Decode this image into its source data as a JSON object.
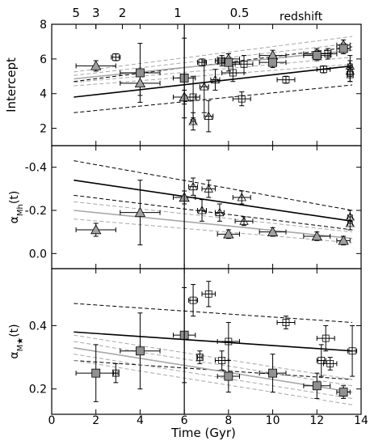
{
  "figure": {
    "redshift_label": "redshift",
    "x_axis": {
      "label": "Time (Gyr)",
      "range": [
        0,
        14
      ],
      "ticks": [
        0,
        2,
        4,
        6,
        8,
        10,
        12,
        14
      ]
    },
    "redshift_ticks": [
      {
        "label": "5",
        "time": 1.1
      },
      {
        "label": "3",
        "time": 2.0
      },
      {
        "label": "2",
        "time": 3.2
      },
      {
        "label": "1",
        "time": 5.7
      },
      {
        "label": "0.5",
        "time": 8.5
      }
    ],
    "vertical_marker_time": 6.0,
    "colors": {
      "axes": "#000000",
      "grey_marker": "#a0a0a0",
      "grey_square": "#909090",
      "grey_line": "#a8a8a8",
      "fit_line": "#000000"
    }
  },
  "chart_data": [
    {
      "type": "scatter",
      "ylabel": "Intercept",
      "ylim": [
        1,
        8
      ],
      "yticks": [
        2,
        4,
        6,
        8
      ],
      "ytick_labels": [
        "2",
        "4",
        "6",
        "8"
      ],
      "series": [
        {
          "marker": "triangle-grey",
          "points": [
            {
              "x": 2.0,
              "y": 5.6,
              "xerr": 0.9,
              "yerr": 0.3
            },
            {
              "x": 4.0,
              "y": 4.6,
              "xerr": 0.9,
              "yerr": 0.7
            },
            {
              "x": 6.0,
              "y": 3.8,
              "xerr": 0.5,
              "yerr": 0.4
            },
            {
              "x": 8.0,
              "y": 6.0,
              "xerr": 0.5,
              "yerr": 0.3
            },
            {
              "x": 10.0,
              "y": 6.2,
              "xerr": 0.6,
              "yerr": 0.3
            },
            {
              "x": 12.0,
              "y": 6.3,
              "xerr": 0.6,
              "yerr": 0.3
            },
            {
              "x": 13.2,
              "y": 6.8,
              "xerr": 0.3,
              "yerr": 0.3
            }
          ]
        },
        {
          "marker": "square-grey",
          "points": [
            {
              "x": 4.0,
              "y": 5.2,
              "xerr": 0.9,
              "yerr": 1.7
            },
            {
              "x": 6.0,
              "y": 4.9,
              "xerr": 0.5,
              "yerr": 2.3
            },
            {
              "x": 8.0,
              "y": 5.8,
              "xerr": 0.5,
              "yerr": 0.5
            },
            {
              "x": 10.0,
              "y": 5.8,
              "xerr": 0.6,
              "yerr": 0.3
            },
            {
              "x": 12.0,
              "y": 6.2,
              "xerr": 0.6,
              "yerr": 0.3
            },
            {
              "x": 13.2,
              "y": 6.6,
              "xerr": 0.3,
              "yerr": 0.3
            }
          ]
        },
        {
          "marker": "triangle-open",
          "points": [
            {
              "x": 6.4,
              "y": 2.4,
              "xerr": 0.1,
              "yerr": 0.5
            },
            {
              "x": 6.9,
              "y": 4.4,
              "xerr": 0.2,
              "yerr": 1.5
            },
            {
              "x": 7.1,
              "y": 2.7,
              "xerr": 0.2,
              "yerr": 0.9
            },
            {
              "x": 7.4,
              "y": 4.8,
              "xerr": 0.2,
              "yerr": 0.6
            },
            {
              "x": 13.5,
              "y": 5.6,
              "xerr": 0.1,
              "yerr": 0.6
            },
            {
              "x": 13.5,
              "y": 5.3,
              "xerr": 0.1,
              "yerr": 0.6
            }
          ]
        },
        {
          "marker": "square-open",
          "points": [
            {
              "x": 2.9,
              "y": 6.1,
              "xerr": 0.2,
              "yerr": 0.2
            },
            {
              "x": 6.4,
              "y": 3.8,
              "xerr": 0.3,
              "yerr": 1.2
            },
            {
              "x": 6.8,
              "y": 5.8,
              "xerr": 0.2,
              "yerr": 0.2
            },
            {
              "x": 7.7,
              "y": 5.9,
              "xerr": 0.3,
              "yerr": 0.3
            },
            {
              "x": 8.2,
              "y": 5.2,
              "xerr": 0.5,
              "yerr": 0.5
            },
            {
              "x": 8.6,
              "y": 3.7,
              "xerr": 0.4,
              "yerr": 0.4
            },
            {
              "x": 8.7,
              "y": 5.7,
              "xerr": 0.4,
              "yerr": 0.5
            },
            {
              "x": 10.6,
              "y": 4.8,
              "xerr": 0.4,
              "yerr": 0.2
            },
            {
              "x": 12.3,
              "y": 5.4,
              "xerr": 0.3,
              "yerr": 0.2
            },
            {
              "x": 12.5,
              "y": 6.3,
              "xerr": 0.4,
              "yerr": 0.3
            },
            {
              "x": 13.5,
              "y": 5.1,
              "xerr": 0.1,
              "yerr": 0.4
            }
          ]
        }
      ],
      "lines": [
        {
          "style": "solid-black",
          "from": [
            1,
            3.8
          ],
          "to": [
            13.6,
            5.6
          ]
        },
        {
          "style": "dashed-black",
          "from": [
            1,
            4.7
          ],
          "to": [
            13.6,
            6.7
          ]
        },
        {
          "style": "dashed-black",
          "from": [
            1,
            2.9
          ],
          "to": [
            13.6,
            4.5
          ]
        },
        {
          "style": "solid-grey",
          "from": [
            1,
            4.85
          ],
          "to": [
            13.6,
            6.5
          ]
        },
        {
          "style": "dashed-grey",
          "from": [
            1,
            5.25
          ],
          "to": [
            13.6,
            7.3
          ]
        },
        {
          "style": "dashed-grey",
          "from": [
            1,
            5.05
          ],
          "to": [
            13.6,
            6.9
          ]
        },
        {
          "style": "dashed-grey",
          "from": [
            1,
            4.65
          ],
          "to": [
            13.6,
            6.1
          ]
        },
        {
          "style": "dashed-grey",
          "from": [
            1,
            4.45
          ],
          "to": [
            13.6,
            5.7
          ]
        }
      ]
    },
    {
      "type": "scatter",
      "ylabel": "α_Mh(t)",
      "ylabel_main": "α",
      "ylabel_sub": "Mh",
      "ylabel_suffix": "(t)",
      "ylim": [
        0.07,
        -0.5
      ],
      "yticks": [
        -0.4,
        -0.2,
        0.0
      ],
      "ytick_labels": [
        "-0.4",
        "-0.2",
        "0.0"
      ],
      "series": [
        {
          "marker": "triangle-grey",
          "points": [
            {
              "x": 2.0,
              "y": -0.11,
              "xerr": 0.9,
              "yerr": 0.03
            },
            {
              "x": 4.0,
              "y": -0.19,
              "xerr": 0.9,
              "yerr": 0.15
            },
            {
              "x": 6.0,
              "y": -0.26,
              "xerr": 0.5,
              "yerr": 0.03
            },
            {
              "x": 8.0,
              "y": -0.09,
              "xerr": 0.5,
              "yerr": 0.02
            },
            {
              "x": 10.0,
              "y": -0.1,
              "xerr": 0.6,
              "yerr": 0.02
            },
            {
              "x": 12.0,
              "y": -0.08,
              "xerr": 0.6,
              "yerr": 0.02
            },
            {
              "x": 13.2,
              "y": -0.06,
              "xerr": 0.3,
              "yerr": 0.02
            }
          ]
        },
        {
          "marker": "triangle-open",
          "points": [
            {
              "x": 6.4,
              "y": -0.31,
              "xerr": 0.2,
              "yerr": 0.04
            },
            {
              "x": 6.8,
              "y": -0.2,
              "xerr": 0.2,
              "yerr": 0.05
            },
            {
              "x": 7.1,
              "y": -0.3,
              "xerr": 0.3,
              "yerr": 0.04
            },
            {
              "x": 7.6,
              "y": -0.19,
              "xerr": 0.2,
              "yerr": 0.04
            },
            {
              "x": 8.6,
              "y": -0.26,
              "xerr": 0.4,
              "yerr": 0.03
            },
            {
              "x": 8.7,
              "y": -0.15,
              "xerr": 0.4,
              "yerr": 0.02
            },
            {
              "x": 13.5,
              "y": -0.17,
              "xerr": 0.1,
              "yerr": 0.03
            },
            {
              "x": 13.5,
              "y": -0.14,
              "xerr": 0.1,
              "yerr": 0.03
            }
          ]
        }
      ],
      "lines": [
        {
          "style": "solid-black",
          "from": [
            1,
            -0.34
          ],
          "to": [
            13.6,
            -0.15
          ]
        },
        {
          "style": "dashed-black",
          "from": [
            1,
            -0.43
          ],
          "to": [
            13.6,
            -0.2
          ]
        },
        {
          "style": "dashed-black",
          "from": [
            1,
            -0.27
          ],
          "to": [
            13.6,
            -0.11
          ]
        },
        {
          "style": "solid-grey",
          "from": [
            1,
            -0.2
          ],
          "to": [
            13.6,
            -0.07
          ]
        },
        {
          "style": "dashed-grey",
          "from": [
            1,
            -0.24
          ],
          "to": [
            13.6,
            -0.1
          ]
        },
        {
          "style": "dashed-grey",
          "from": [
            1,
            -0.16
          ],
          "to": [
            13.6,
            -0.05
          ]
        }
      ]
    },
    {
      "type": "scatter",
      "ylabel": "α_M★(t)",
      "ylabel_main": "α",
      "ylabel_sub": "M★",
      "ylabel_suffix": "(t)",
      "ylim": [
        0.12,
        0.58
      ],
      "yticks": [
        0.2,
        0.4
      ],
      "ytick_labels": [
        "0.2",
        "0.4"
      ],
      "series": [
        {
          "marker": "square-grey",
          "points": [
            {
              "x": 2.0,
              "y": 0.25,
              "xerr": 0.9,
              "yerr": 0.09
            },
            {
              "x": 4.0,
              "y": 0.32,
              "xerr": 0.9,
              "yerr": 0.12
            },
            {
              "x": 6.0,
              "y": 0.37,
              "xerr": 0.5,
              "yerr": 0.15
            },
            {
              "x": 8.0,
              "y": 0.24,
              "xerr": 0.5,
              "yerr": 0.05
            },
            {
              "x": 10.0,
              "y": 0.25,
              "xerr": 0.6,
              "yerr": 0.06
            },
            {
              "x": 12.0,
              "y": 0.21,
              "xerr": 0.6,
              "yerr": 0.04
            },
            {
              "x": 13.2,
              "y": 0.19,
              "xerr": 0.3,
              "yerr": 0.02
            }
          ]
        },
        {
          "marker": "square-open",
          "points": [
            {
              "x": 2.9,
              "y": 0.25,
              "xerr": 0.1,
              "yerr": 0.03
            },
            {
              "x": 6.4,
              "y": 0.48,
              "xerr": 0.2,
              "yerr": 0.05
            },
            {
              "x": 6.7,
              "y": 0.3,
              "xerr": 0.1,
              "yerr": 0.02
            },
            {
              "x": 7.1,
              "y": 0.5,
              "xerr": 0.3,
              "yerr": 0.04
            },
            {
              "x": 7.7,
              "y": 0.29,
              "xerr": 0.3,
              "yerr": 0.03
            },
            {
              "x": 8.0,
              "y": 0.35,
              "xerr": 0.5,
              "yerr": 0.06
            },
            {
              "x": 10.6,
              "y": 0.41,
              "xerr": 0.4,
              "yerr": 0.02
            },
            {
              "x": 12.2,
              "y": 0.29,
              "xerr": 0.2,
              "yerr": 0.05
            },
            {
              "x": 12.4,
              "y": 0.36,
              "xerr": 0.4,
              "yerr": 0.04
            },
            {
              "x": 12.6,
              "y": 0.28,
              "xerr": 0.3,
              "yerr": 0.02
            },
            {
              "x": 13.6,
              "y": 0.32,
              "xerr": 0.2,
              "yerr": 0.08
            }
          ]
        }
      ],
      "lines": [
        {
          "style": "solid-black",
          "from": [
            1,
            0.38
          ],
          "to": [
            13.6,
            0.32
          ]
        },
        {
          "style": "dashed-black",
          "from": [
            1,
            0.47
          ],
          "to": [
            13.6,
            0.41
          ]
        },
        {
          "style": "dashed-black",
          "from": [
            1,
            0.29
          ],
          "to": [
            13.6,
            0.23
          ]
        },
        {
          "style": "solid-grey",
          "from": [
            1,
            0.33
          ],
          "to": [
            13.6,
            0.19
          ]
        },
        {
          "style": "dashed-grey",
          "from": [
            1,
            0.35
          ],
          "to": [
            13.6,
            0.21
          ]
        },
        {
          "style": "dashed-grey",
          "from": [
            1,
            0.31
          ],
          "to": [
            13.6,
            0.17
          ]
        },
        {
          "style": "dashed-grey",
          "from": [
            1,
            0.37
          ],
          "to": [
            13.6,
            0.23
          ]
        },
        {
          "style": "dashed-grey",
          "from": [
            1,
            0.29
          ],
          "to": [
            13.6,
            0.15
          ]
        }
      ]
    }
  ]
}
